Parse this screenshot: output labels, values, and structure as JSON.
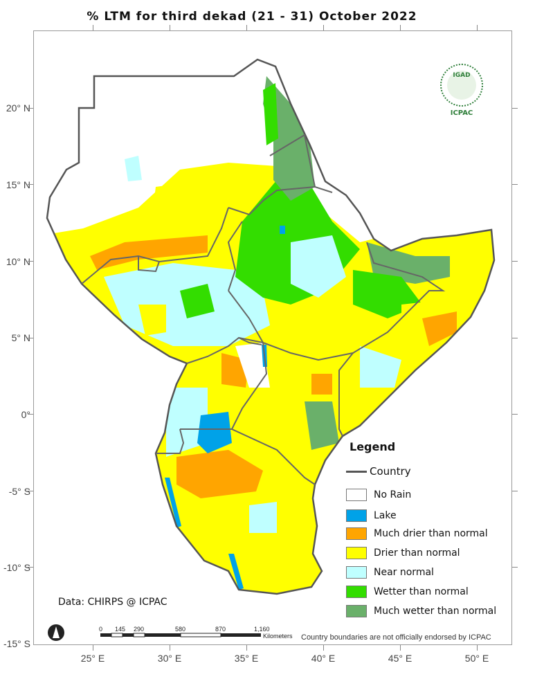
{
  "map": {
    "title": "% LTM for  third  dekad (21 - 31)  October 2022",
    "lat_labels": [
      "20° N",
      "15° N",
      "10° N",
      "5° N",
      "0°",
      "-5° S",
      "-10° S",
      "-15° S"
    ],
    "lon_labels": [
      "25° E",
      "30° E",
      "35° E",
      "40° E",
      "45° E",
      "50° E"
    ],
    "credit": "Data: CHIRPS @ ICPAC",
    "disclaimer": "Country boundaries are not officially endorsed by ICPAC",
    "logo": {
      "top_text": "IGAD",
      "bottom_text": "ICPAC"
    }
  },
  "scale_bar": {
    "ticks": [
      "0",
      "145",
      "290",
      "580",
      "870",
      "1,160"
    ],
    "unit": "Kilometers"
  },
  "legend": {
    "title": "Legend",
    "country_label": "Country",
    "items": [
      {
        "label": "No Rain",
        "color": "#ffffff"
      },
      {
        "label": "Lake",
        "color": "#00a2e8"
      },
      {
        "label": "Much drier than normal",
        "color": "#ffa500"
      },
      {
        "label": "Drier than normal",
        "color": "#ffff00"
      },
      {
        "label": "Near normal",
        "color": "#bfffff"
      },
      {
        "label": "Wetter than normal",
        "color": "#33dd00"
      },
      {
        "label": "Much wetter than normal",
        "color": "#6ab06a"
      }
    ]
  }
}
